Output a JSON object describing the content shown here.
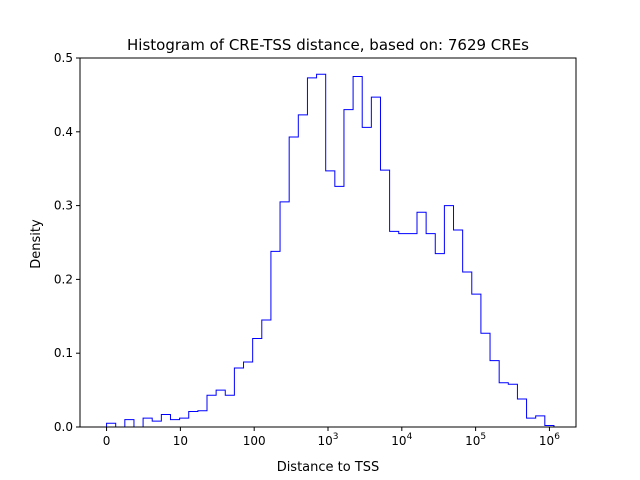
{
  "chart_data": {
    "type": "histogram",
    "title": "Histogram of CRE-TSS distance, based on: 7629 CREs",
    "xlabel": "Distance to TSS",
    "ylabel": "Density",
    "x_scale": "symlog",
    "xlim": [
      -0.36,
      6.36
    ],
    "ylim": [
      0,
      0.5
    ],
    "x_ticks": [
      {
        "value": 0,
        "label": "0"
      },
      {
        "value": 1,
        "label": "10"
      },
      {
        "value": 2,
        "label": "100"
      },
      {
        "value": 3,
        "label": "10",
        "exp": "3"
      },
      {
        "value": 4,
        "label": "10",
        "exp": "4"
      },
      {
        "value": 5,
        "label": "10",
        "exp": "5"
      },
      {
        "value": 6,
        "label": "10",
        "exp": "6"
      }
    ],
    "y_ticks": [
      "0.0",
      "0.1",
      "0.2",
      "0.3",
      "0.4",
      "0.5"
    ],
    "y_tick_values": [
      0,
      0.1,
      0.2,
      0.3,
      0.4,
      0.5
    ],
    "line_color": "#0000ff",
    "bin_start": 0,
    "bin_width": 0.1237,
    "values": [
      0.005,
      0.0,
      0.01,
      0.0,
      0.012,
      0.008,
      0.017,
      0.01,
      0.012,
      0.021,
      0.022,
      0.043,
      0.05,
      0.043,
      0.08,
      0.088,
      0.12,
      0.145,
      0.238,
      0.305,
      0.393,
      0.423,
      0.473,
      0.478,
      0.347,
      0.326,
      0.43,
      0.475,
      0.406,
      0.447,
      0.348,
      0.265,
      0.262,
      0.262,
      0.291,
      0.262,
      0.235,
      0.3,
      0.267,
      0.21,
      0.18,
      0.127,
      0.09,
      0.06,
      0.058,
      0.038,
      0.012,
      0.015,
      0.002
    ]
  }
}
